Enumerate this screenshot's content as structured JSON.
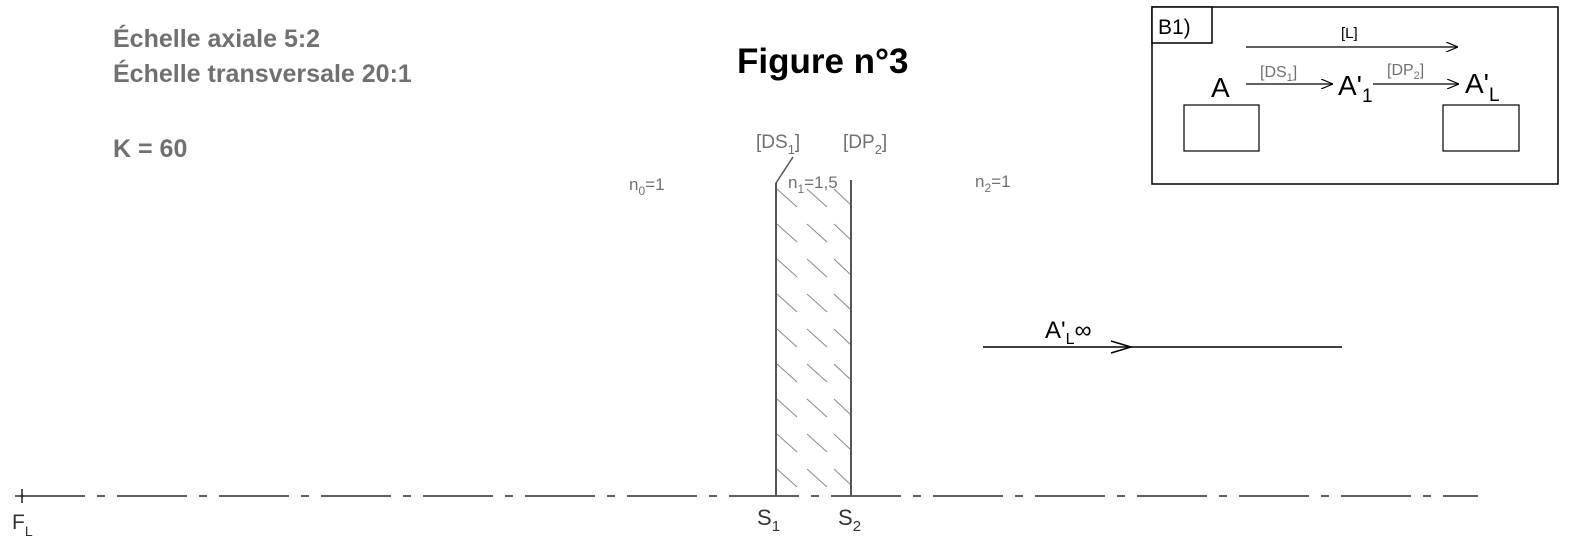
{
  "header": {
    "scale_axial": "Échelle axiale 5:2",
    "scale_transversal": "Échelle transversale 20:1",
    "k_value": "K = 60",
    "figure_title": "Figure n°3"
  },
  "diagram": {
    "dioptre_label": {
      "main": "[DS",
      "sub": "1",
      "close": "]"
    },
    "plate_label": {
      "main": "[DP",
      "sub": "2",
      "close": "]"
    },
    "media": [
      {
        "main": "n",
        "sub": "0",
        "rest": "=1"
      },
      {
        "main": "n",
        "sub": "1",
        "rest": "=1,5"
      },
      {
        "main": "n",
        "sub": "2",
        "rest": "=1"
      }
    ],
    "vertex_1": {
      "main": "S",
      "sub": "1"
    },
    "vertex_2": {
      "main": "S",
      "sub": "2"
    },
    "focal_point": {
      "main": "F",
      "sub": "L"
    },
    "image_label": {
      "main": "A'",
      "sub": "L",
      "rest": "∞"
    }
  },
  "inset": {
    "tag": "B1)",
    "system_label": "[L]",
    "object": "A",
    "step1_label": {
      "main": "[DS",
      "sub": "1",
      "close": "]"
    },
    "intermediate": {
      "main": "A'",
      "sub": "1"
    },
    "step2_label": {
      "main": "[DP",
      "sub": "2",
      "close": "]"
    },
    "final": {
      "main": "A'",
      "sub": "L"
    }
  },
  "colors": {
    "gray_text": "#707070",
    "line": "#000000",
    "plate": "#555555",
    "hatch": "#8a8a8a"
  }
}
